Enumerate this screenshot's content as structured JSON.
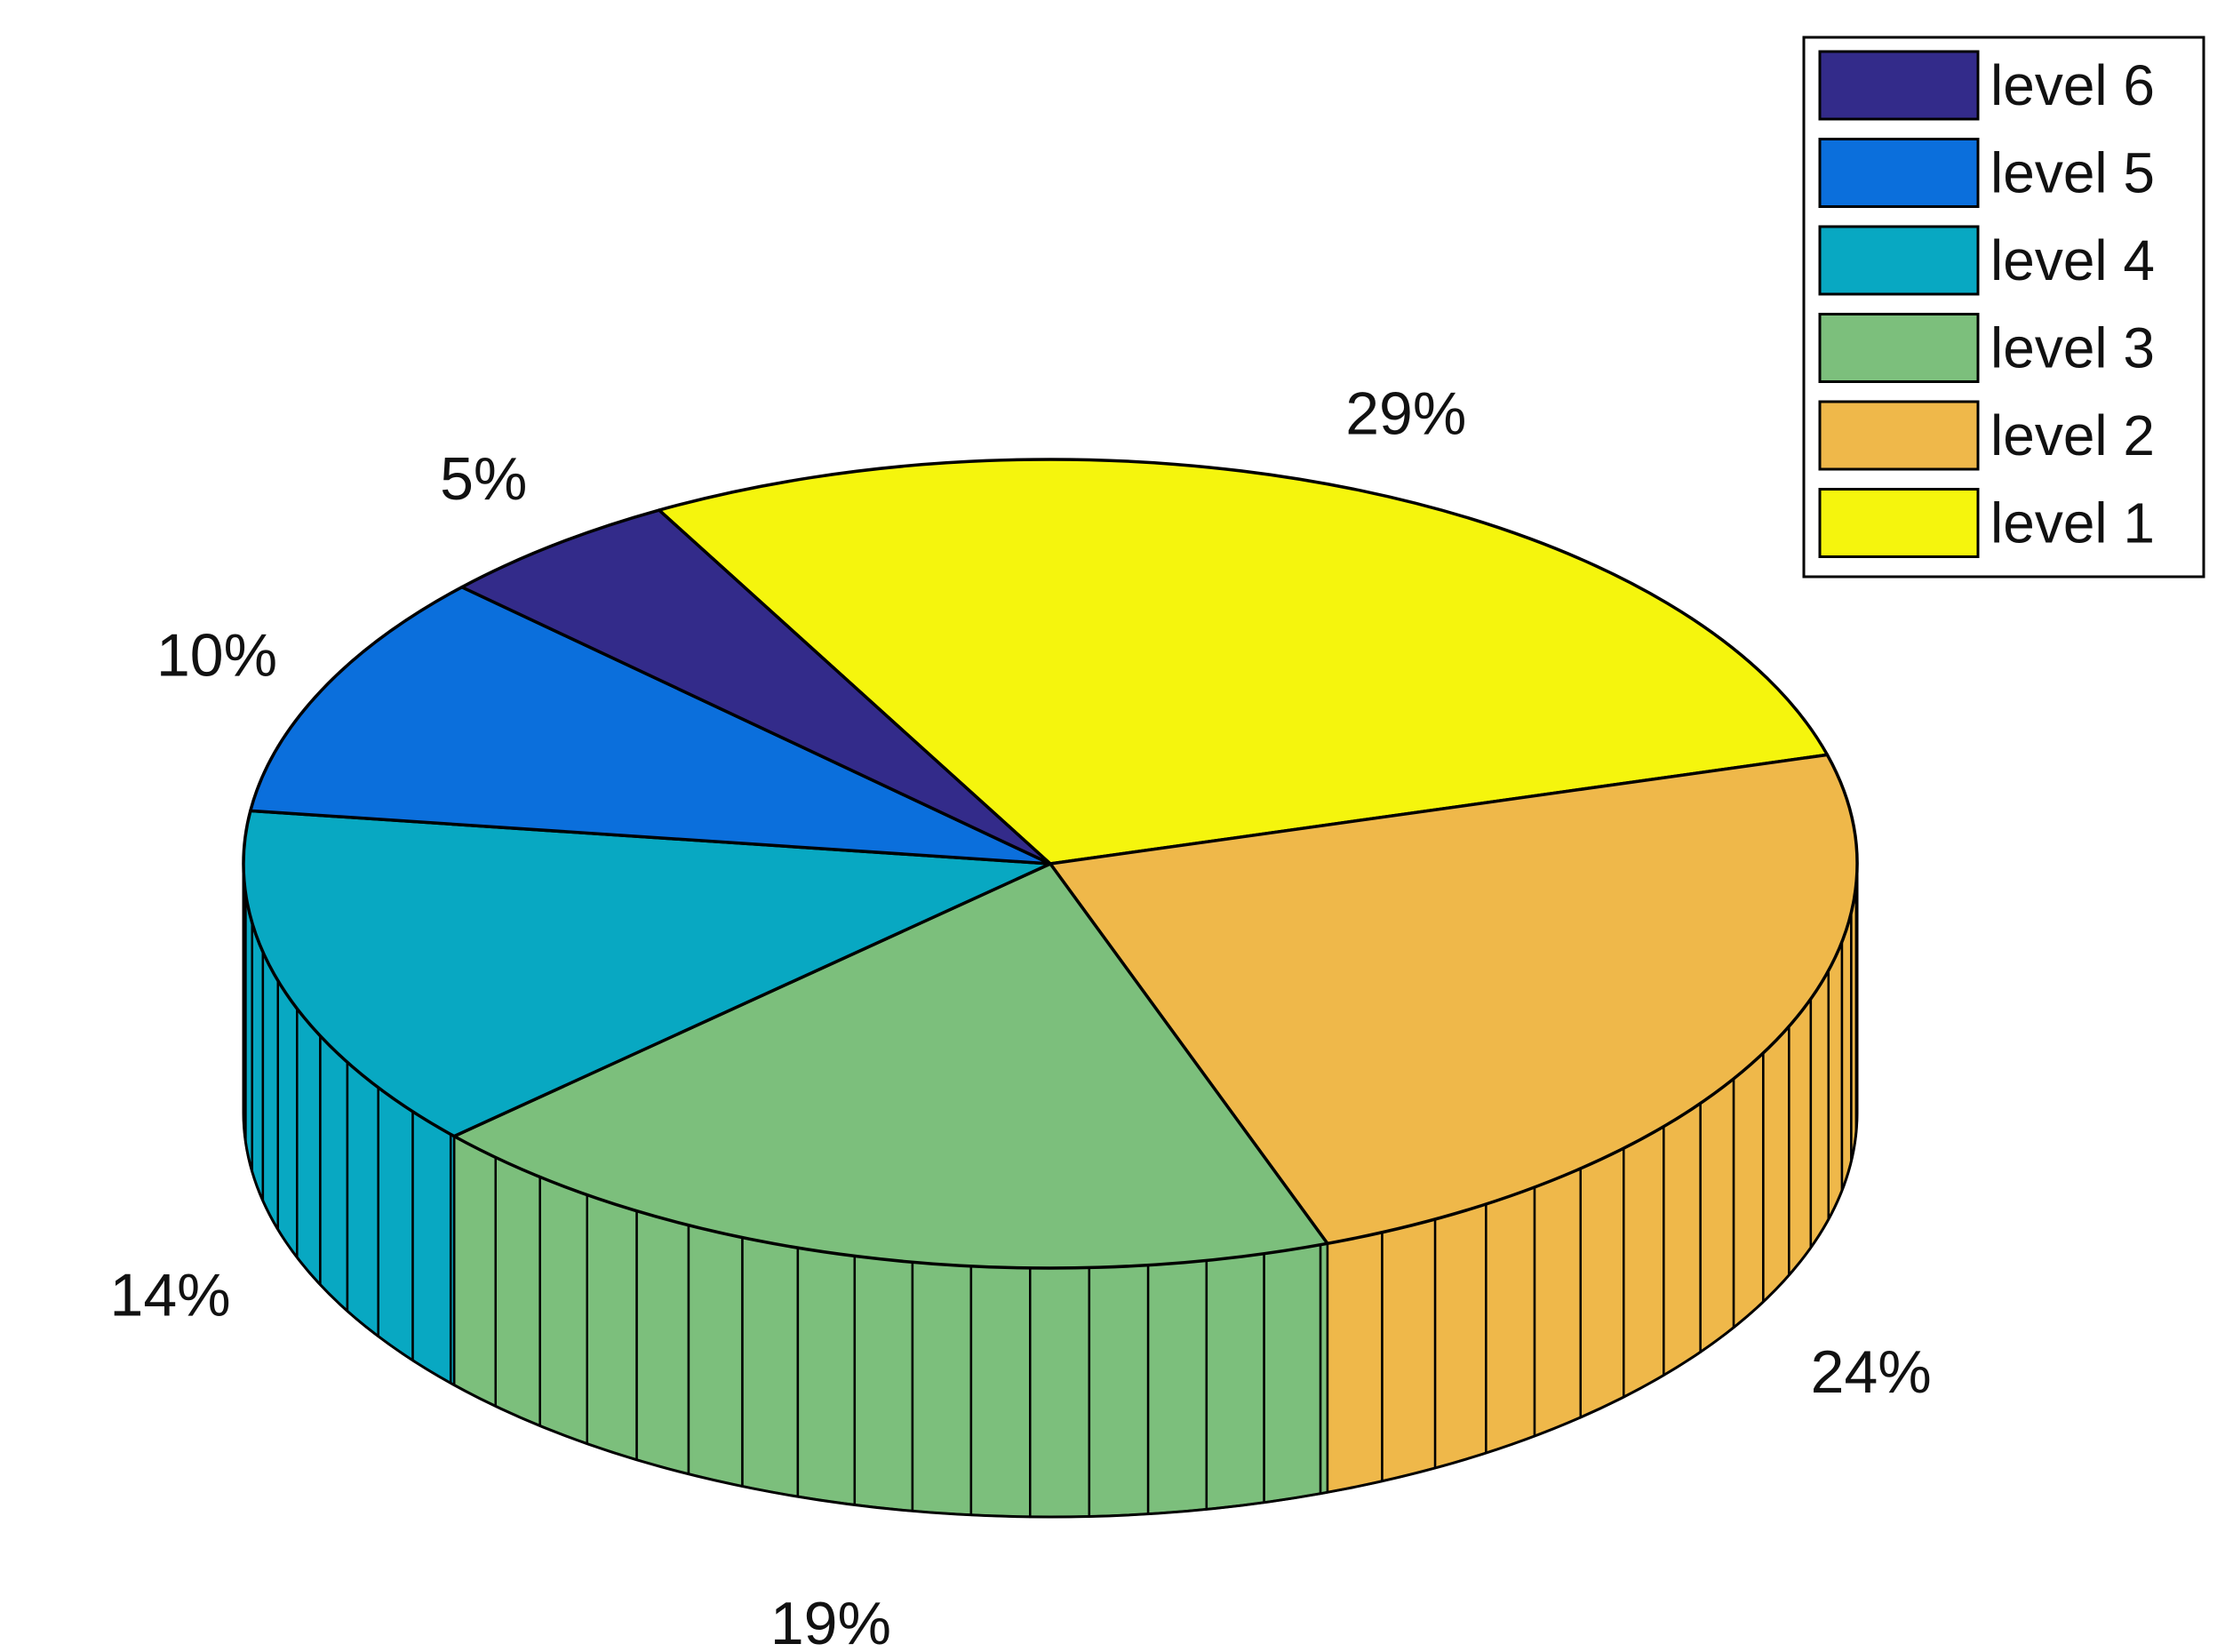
{
  "chart_data": {
    "type": "pie",
    "style": "3d",
    "title": "",
    "slices": [
      {
        "label": "level 1",
        "value": 29,
        "display": "29%",
        "color": "#f5f50d"
      },
      {
        "label": "level 2",
        "value": 24,
        "display": "24%",
        "color": "#efb84a"
      },
      {
        "label": "level 3",
        "value": 19,
        "display": "19%",
        "color": "#7cbf7c"
      },
      {
        "label": "level 4",
        "value": 14,
        "display": "14%",
        "color": "#08a8c2"
      },
      {
        "label": "level 5",
        "value": 10,
        "display": "10%",
        "color": "#0b6fdc"
      },
      {
        "label": "level 6",
        "value": 5,
        "display": "5%",
        "color": "#332b8a"
      }
    ],
    "legend": {
      "position": "top-right",
      "entries": [
        "level 6",
        "level 5",
        "level 4",
        "level 3",
        "level 2",
        "level 1"
      ]
    }
  }
}
